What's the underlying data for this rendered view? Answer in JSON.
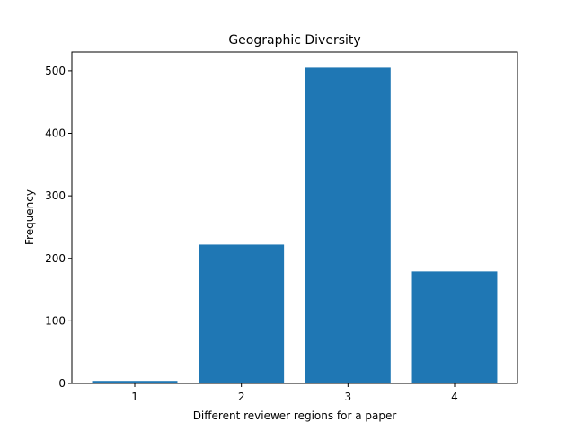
{
  "chart_data": {
    "type": "bar",
    "title": "Geographic Diversity",
    "xlabel": "Different reviewer regions for a paper",
    "ylabel": "Frequency",
    "categories": [
      "1",
      "2",
      "3",
      "4"
    ],
    "values": [
      4,
      222,
      505,
      179
    ],
    "ylim": [
      0,
      530
    ],
    "yticks": [
      "0",
      "100",
      "200",
      "300",
      "400",
      "500"
    ],
    "bar_color": "#1f77b4",
    "grid": false,
    "legend": "none"
  }
}
